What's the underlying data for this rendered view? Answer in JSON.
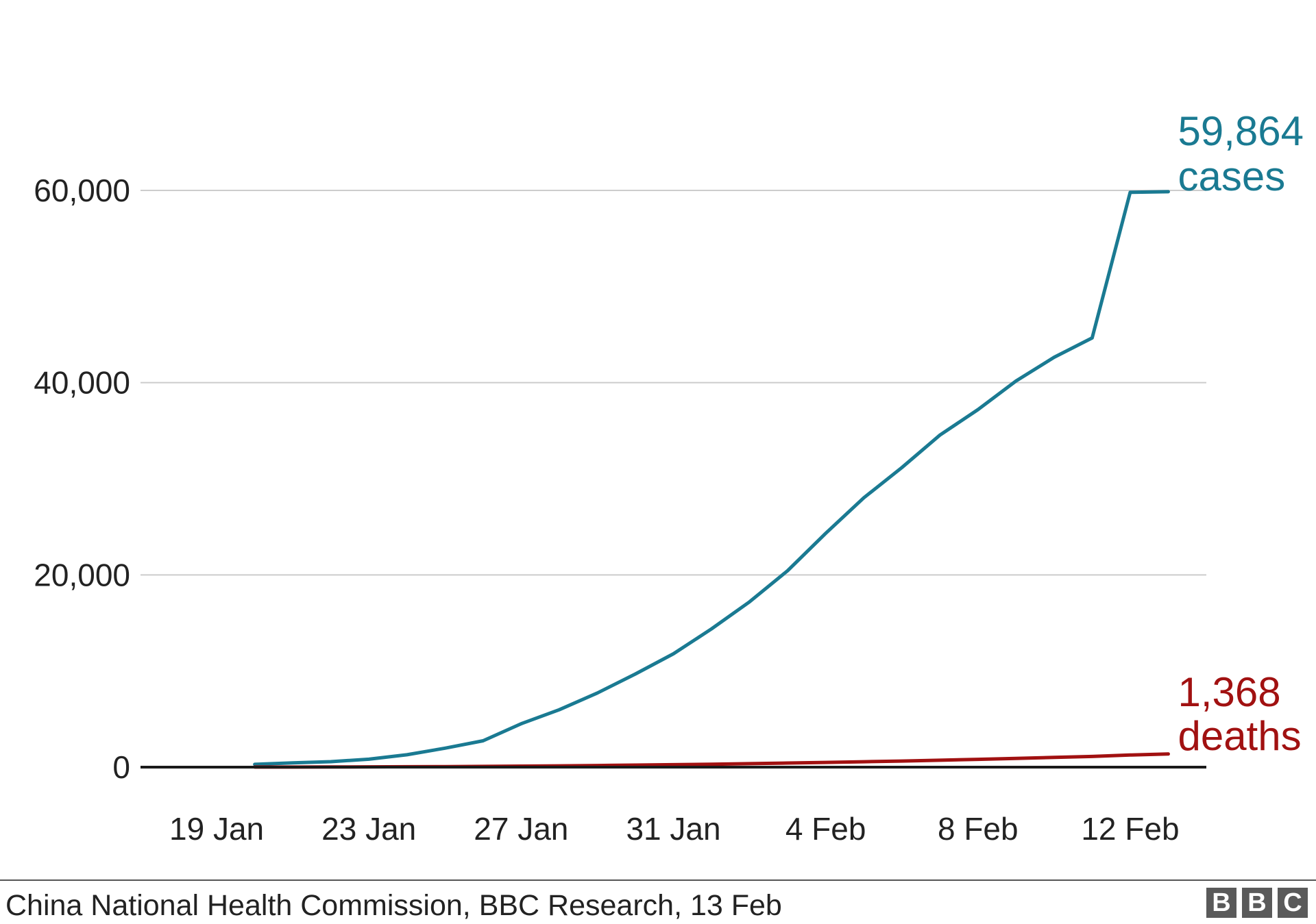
{
  "chart_data": {
    "type": "line",
    "title": "",
    "xlabel": "",
    "ylabel": "",
    "x_range": [
      "2020-01-17",
      "2020-02-14"
    ],
    "ylim": [
      0,
      60000
    ],
    "y_ticks": [
      0,
      20000,
      40000,
      60000
    ],
    "y_tick_labels": [
      "0",
      "20,000",
      "40,000",
      "60,000"
    ],
    "x_ticks": [
      "2020-01-19",
      "2020-01-23",
      "2020-01-27",
      "2020-01-31",
      "2020-02-04",
      "2020-02-08",
      "2020-02-12"
    ],
    "x_tick_labels": [
      "19 Jan",
      "23 Jan",
      "27 Jan",
      "31 Jan",
      "4 Feb",
      "8 Feb",
      "12 Feb"
    ],
    "grid": true,
    "legend": "none",
    "series": [
      {
        "color": "#1a7a92",
        "end_value_label": "59,864",
        "end_unit_label": "cases",
        "points": [
          [
            "2020-01-20",
            291
          ],
          [
            "2020-01-21",
            440
          ],
          [
            "2020-01-22",
            571
          ],
          [
            "2020-01-23",
            830
          ],
          [
            "2020-01-24",
            1287
          ],
          [
            "2020-01-25",
            1975
          ],
          [
            "2020-01-26",
            2744
          ],
          [
            "2020-01-27",
            4515
          ],
          [
            "2020-01-28",
            5974
          ],
          [
            "2020-01-29",
            7711
          ],
          [
            "2020-01-30",
            9692
          ],
          [
            "2020-01-31",
            11791
          ],
          [
            "2020-02-01",
            14380
          ],
          [
            "2020-02-02",
            17205
          ],
          [
            "2020-02-03",
            20438
          ],
          [
            "2020-02-04",
            24324
          ],
          [
            "2020-02-05",
            28018
          ],
          [
            "2020-02-06",
            31161
          ],
          [
            "2020-02-07",
            34546
          ],
          [
            "2020-02-08",
            37198
          ],
          [
            "2020-02-09",
            40171
          ],
          [
            "2020-02-10",
            42638
          ],
          [
            "2020-02-11",
            44653
          ],
          [
            "2020-02-12",
            59804
          ],
          [
            "2020-02-13",
            59864
          ]
        ]
      },
      {
        "color": "#a11111",
        "end_value_label": "1,368",
        "end_unit_label": "deaths",
        "points": [
          [
            "2020-01-20",
            6
          ],
          [
            "2020-01-21",
            9
          ],
          [
            "2020-01-22",
            17
          ],
          [
            "2020-01-23",
            25
          ],
          [
            "2020-01-24",
            41
          ],
          [
            "2020-01-25",
            56
          ],
          [
            "2020-01-26",
            80
          ],
          [
            "2020-01-27",
            106
          ],
          [
            "2020-01-28",
            132
          ],
          [
            "2020-01-29",
            170
          ],
          [
            "2020-01-30",
            213
          ],
          [
            "2020-01-31",
            259
          ],
          [
            "2020-02-01",
            304
          ],
          [
            "2020-02-02",
            361
          ],
          [
            "2020-02-03",
            425
          ],
          [
            "2020-02-04",
            490
          ],
          [
            "2020-02-05",
            563
          ],
          [
            "2020-02-06",
            636
          ],
          [
            "2020-02-07",
            722
          ],
          [
            "2020-02-08",
            811
          ],
          [
            "2020-02-09",
            908
          ],
          [
            "2020-02-10",
            1016
          ],
          [
            "2020-02-11",
            1113
          ],
          [
            "2020-02-12",
            1259
          ],
          [
            "2020-02-13",
            1368
          ]
        ]
      }
    ]
  },
  "footer": {
    "source": "China National Health Commission, BBC Research, 13 Feb",
    "logo_letters": [
      "B",
      "B",
      "C"
    ]
  }
}
